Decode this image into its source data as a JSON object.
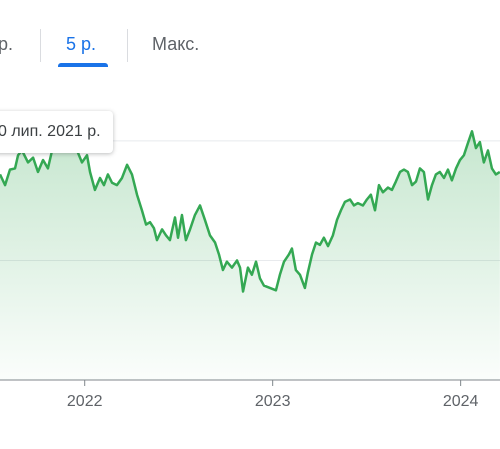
{
  "tabs": [
    "р.",
    "5 р.",
    "Макс."
  ],
  "tooltip": "0 лип. 2021 р.",
  "chart_data": {
    "type": "area",
    "color": "#34a853",
    "x": [
      2021.56,
      2021.587,
      2021.613,
      2021.64,
      2021.656,
      2021.677,
      2021.709,
      2021.736,
      2021.762,
      2021.789,
      2021.815,
      2021.837,
      2021.863,
      2021.89,
      2021.916,
      2021.943,
      2021.97,
      2021.996,
      2022.023,
      2022.039,
      2022.065,
      2022.092,
      2022.113,
      2022.134,
      2022.156,
      2022.182,
      2022.209,
      2022.236,
      2022.262,
      2022.289,
      2022.315,
      2022.337,
      2022.358,
      2022.379,
      2022.395,
      2022.422,
      2022.443,
      2022.464,
      2022.491,
      2022.507,
      2022.528,
      2022.549,
      2022.571,
      2022.597,
      2022.624,
      2022.65,
      2022.677,
      2022.704,
      2022.725,
      2022.746,
      2022.767,
      2022.794,
      2022.821,
      2022.837,
      2022.853,
      2022.879,
      2022.9,
      2022.922,
      2022.943,
      2022.964,
      2022.996,
      2023.028,
      2023.049,
      2023.071,
      2023.097,
      2023.113,
      2023.134,
      2023.156,
      2023.182,
      2023.198,
      2023.22,
      2023.241,
      2023.262,
      2023.283,
      2023.305,
      2023.331,
      2023.353,
      2023.374,
      2023.395,
      2023.422,
      2023.443,
      2023.464,
      2023.491,
      2023.512,
      2023.533,
      2023.555,
      2023.576,
      2023.597,
      2023.624,
      2023.645,
      2023.666,
      2023.688,
      2023.709,
      2023.73,
      2023.752,
      2023.773,
      2023.794,
      2023.815,
      2023.837,
      2023.858,
      2023.879,
      2023.9,
      2023.922,
      2023.943,
      2023.964,
      2023.986,
      2024.007,
      2024.028,
      2024.049,
      2024.071,
      2024.092,
      2024.113,
      2024.134,
      2024.156,
      2024.177,
      2024.198,
      2024.219
    ],
    "values": [
      1.72,
      1.63,
      1.76,
      1.77,
      1.88,
      1.92,
      1.82,
      1.86,
      1.74,
      1.84,
      1.77,
      1.92,
      1.94,
      1.91,
      1.94,
      1.97,
      1.92,
      1.82,
      1.88,
      1.74,
      1.59,
      1.69,
      1.63,
      1.72,
      1.65,
      1.63,
      1.69,
      1.8,
      1.72,
      1.55,
      1.42,
      1.3,
      1.32,
      1.27,
      1.17,
      1.26,
      1.21,
      1.17,
      1.36,
      1.19,
      1.38,
      1.17,
      1.26,
      1.38,
      1.46,
      1.34,
      1.21,
      1.15,
      1.05,
      0.92,
      0.99,
      0.94,
      1.0,
      0.94,
      0.74,
      0.94,
      0.88,
      0.99,
      0.85,
      0.79,
      0.77,
      0.75,
      0.88,
      0.99,
      1.05,
      1.1,
      0.92,
      0.88,
      0.77,
      0.9,
      1.05,
      1.15,
      1.13,
      1.19,
      1.12,
      1.21,
      1.34,
      1.42,
      1.49,
      1.51,
      1.46,
      1.48,
      1.46,
      1.51,
      1.55,
      1.42,
      1.63,
      1.57,
      1.61,
      1.59,
      1.66,
      1.74,
      1.76,
      1.74,
      1.63,
      1.66,
      1.77,
      1.74,
      1.51,
      1.63,
      1.72,
      1.74,
      1.69,
      1.76,
      1.67,
      1.77,
      1.84,
      1.88,
      1.98,
      2.08,
      1.94,
      1.99,
      1.82,
      1.92,
      1.77,
      1.72,
      1.74
    ],
    "xlim": [
      2021.56,
      2024.22
    ],
    "xticks": [
      2022,
      2023,
      2024
    ],
    "ylim": [
      0,
      2.2
    ],
    "yticks": [
      0,
      1,
      2
    ],
    "grid": true
  }
}
